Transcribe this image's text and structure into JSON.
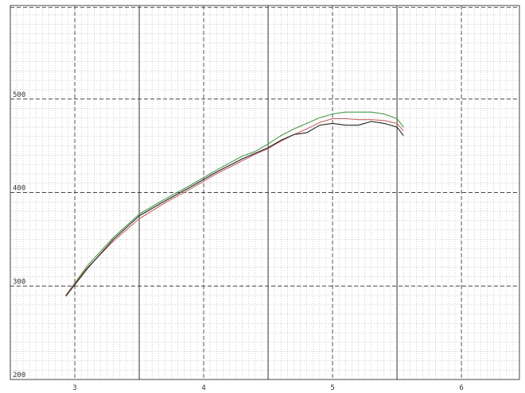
{
  "chart_data": {
    "type": "line",
    "title": "",
    "xlabel": "",
    "ylabel": "",
    "xlim": [
      2.5,
      6.45
    ],
    "ylim": [
      200,
      600
    ],
    "grid": true,
    "x_ticks": [
      {
        "value": 3,
        "label": "3"
      },
      {
        "value": 4,
        "label": "4"
      },
      {
        "value": 5,
        "label": "5"
      },
      {
        "value": 6,
        "label": "6"
      }
    ],
    "y_ticks": [
      {
        "value": 200,
        "label": "200"
      },
      {
        "value": 300,
        "label": "300"
      },
      {
        "value": 400,
        "label": "400"
      },
      {
        "value": 500,
        "label": "500"
      }
    ],
    "colors": {
      "grid_major": "#333333",
      "grid_dashed": "#444444",
      "grid_minor": "#b0b0b0",
      "frame": "#444444"
    },
    "series": [
      {
        "color": "#4a9a4a",
        "x": [
          2.93,
          3.1,
          3.3,
          3.5,
          3.7,
          3.9,
          4.1,
          4.3,
          4.4,
          4.5,
          4.6,
          4.7,
          4.8,
          4.9,
          5.0,
          5.1,
          5.2,
          5.3,
          5.4,
          5.5,
          5.55
        ],
        "y": [
          290,
          322,
          352,
          377,
          393,
          408,
          424,
          439,
          444,
          452,
          461,
          468,
          474,
          480,
          484,
          486,
          486,
          486,
          484,
          479,
          470
        ]
      },
      {
        "color": "#c86464",
        "x": [
          2.93,
          3.1,
          3.3,
          3.5,
          3.7,
          3.9,
          4.1,
          4.3,
          4.4,
          4.5,
          4.6,
          4.7,
          4.8,
          4.9,
          5.0,
          5.1,
          5.2,
          5.3,
          5.4,
          5.5,
          5.55
        ],
        "y": [
          290,
          320,
          348,
          372,
          389,
          404,
          420,
          434,
          441,
          447,
          455,
          462,
          468,
          475,
          479,
          479,
          478,
          478,
          477,
          474,
          466
        ]
      },
      {
        "color": "#222222",
        "x": [
          2.93,
          3.1,
          3.3,
          3.5,
          3.7,
          3.9,
          4.1,
          4.3,
          4.4,
          4.5,
          4.6,
          4.7,
          4.8,
          4.9,
          5.0,
          5.1,
          5.2,
          5.3,
          5.4,
          5.5,
          5.55
        ],
        "y": [
          289,
          319,
          350,
          375,
          391,
          406,
          422,
          436,
          442,
          448,
          456,
          462,
          464,
          472,
          474,
          472,
          472,
          476,
          474,
          470,
          461
        ]
      }
    ]
  }
}
